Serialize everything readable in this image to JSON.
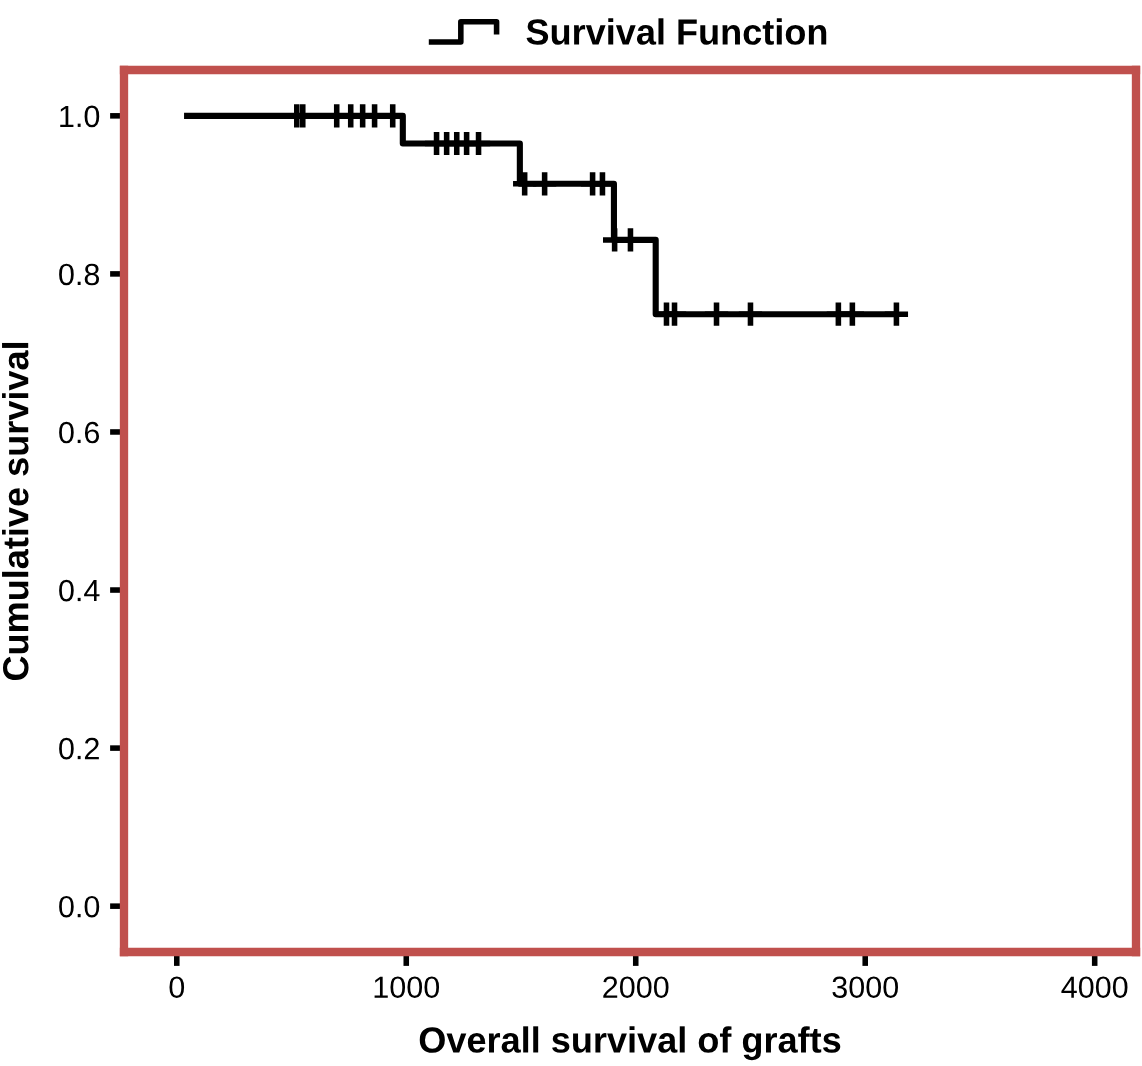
{
  "chart_data": {
    "type": "step",
    "xlabel": "Overall survival of grafts",
    "ylabel": "Cumulative survival",
    "xlim": [
      -230,
      4180
    ],
    "xticks": [
      0,
      1000,
      2000,
      3000,
      4000
    ],
    "ylim": [
      -0.058,
      1.058
    ],
    "yticks": [
      {
        "value": 0,
        "label": "0.0"
      },
      {
        "value": 0.2,
        "label": "0.2"
      },
      {
        "value": 0.4,
        "label": "0.4"
      },
      {
        "value": 0.6,
        "label": "0.6"
      },
      {
        "value": 0.8,
        "label": "0.8"
      },
      {
        "value": 1,
        "label": "1.0"
      }
    ],
    "grid": false,
    "legend": "top",
    "series": [
      {
        "name": "Survival Function",
        "type": "step",
        "color": "#000000",
        "x": [
          45,
          985,
          1495,
          1905,
          2087,
          3130
        ],
        "values": [
          1.0,
          0.965,
          0.914,
          0.843,
          0.749,
          0.749
        ]
      },
      {
        "type": "scatter",
        "marker": "cross",
        "color": "#000000",
        "x": [
          523,
          549,
          697,
          758,
          810,
          862,
          941,
          1132,
          1176,
          1220,
          1263,
          1315,
          1516,
          1603,
          1812,
          1855,
          1908,
          1977,
          2134,
          2169,
          2352,
          2500,
          2883,
          2944,
          3136
        ],
        "values": [
          1.0,
          1.0,
          1.0,
          1.0,
          1.0,
          1.0,
          1.0,
          0.965,
          0.965,
          0.965,
          0.965,
          0.965,
          0.914,
          0.914,
          0.914,
          0.914,
          0.843,
          0.843,
          0.749,
          0.749,
          0.749,
          0.749,
          0.749,
          0.749,
          0.749
        ]
      }
    ]
  }
}
